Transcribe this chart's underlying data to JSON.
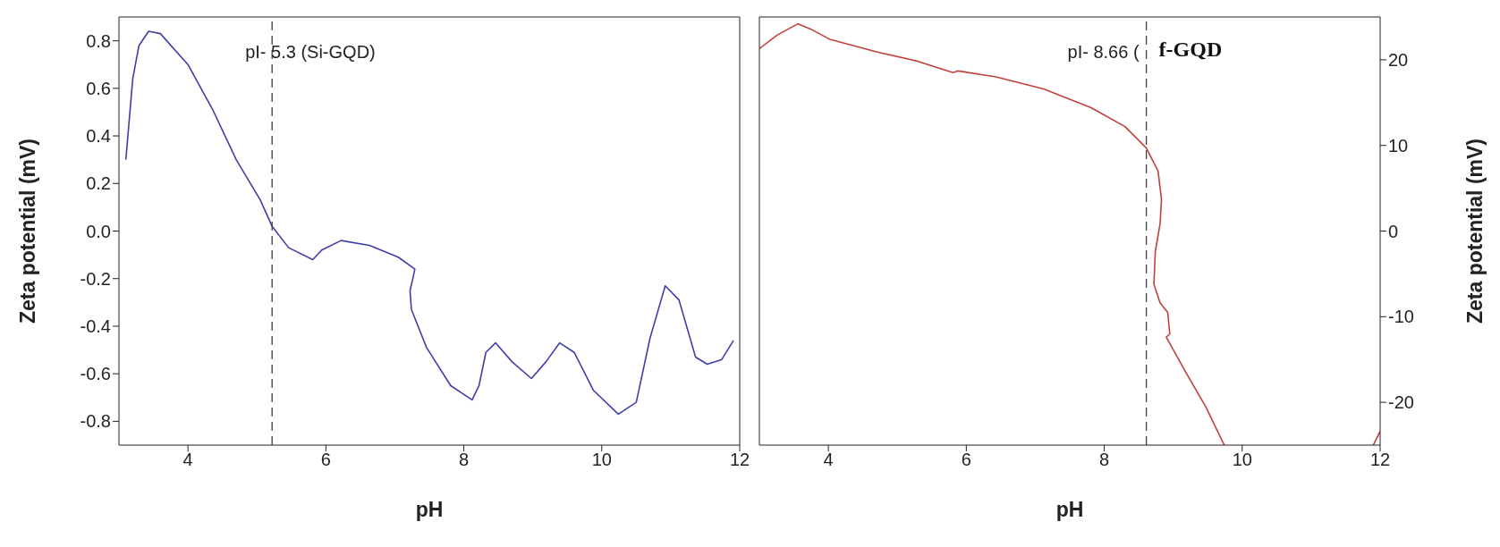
{
  "chart_data": [
    {
      "type": "line",
      "xlabel": "pH",
      "ylabel": "Zeta potential (mV)",
      "xlim": [
        3,
        12
      ],
      "xticks": [
        4,
        6,
        8,
        10,
        12
      ],
      "ylim": [
        -0.9,
        0.9
      ],
      "yticks": [
        -0.8,
        -0.6,
        -0.4,
        -0.2,
        {
          "value": 0,
          "label": "0.0"
        },
        0.2,
        0.4,
        0.6,
        0.8
      ],
      "ref_lines": [
        {
          "axis": "x",
          "value": 5.22,
          "label": "pI- 5.3 (Si-GQD)",
          "color": "#404040",
          "line_style": "dashed"
        }
      ],
      "series": [
        {
          "color": "#3f3fa8",
          "x": [
            3.1,
            3.2,
            3.29,
            3.43,
            3.6,
            4.0,
            4.36,
            4.7,
            5.05,
            5.22,
            5.46,
            5.81,
            5.94,
            6.22,
            6.63,
            7.05,
            7.29,
            7.26,
            7.22,
            7.24,
            7.46,
            7.81,
            8.12,
            8.22,
            8.32,
            8.46,
            8.7,
            8.98,
            9.19,
            9.39,
            9.6,
            9.88,
            10.24,
            10.5,
            10.7,
            10.92,
            11.12,
            11.36,
            11.53,
            11.74,
            11.91
          ],
          "values": [
            0.3,
            0.64,
            0.78,
            0.84,
            0.83,
            0.7,
            0.51,
            0.3,
            0.13,
            0.02,
            -0.07,
            -0.12,
            -0.08,
            -0.04,
            -0.06,
            -0.11,
            -0.16,
            -0.2,
            -0.25,
            -0.33,
            -0.49,
            -0.65,
            -0.71,
            -0.65,
            -0.51,
            -0.47,
            -0.55,
            -0.62,
            -0.55,
            -0.47,
            -0.51,
            -0.67,
            -0.77,
            -0.72,
            -0.45,
            -0.23,
            -0.29,
            -0.53,
            -0.56,
            -0.54,
            -0.46
          ]
        }
      ]
    },
    {
      "type": "line",
      "xlabel": "pH",
      "y2label": "Zeta potential (mV)",
      "xlim": [
        3,
        12
      ],
      "xticks": [
        4,
        6,
        8,
        10,
        12
      ],
      "y2lim": [
        -25,
        25
      ],
      "y2ticks": [
        -20,
        -10,
        0,
        10,
        20
      ],
      "ref_lines": [
        {
          "axis": "x",
          "value": 8.61,
          "label": "pI- 8.66 (",
          "color": "#404040",
          "line_style": "dashed"
        }
      ],
      "annotations": [
        "f-GQD"
      ],
      "series": [
        {
          "color": "#c0413b",
          "axis": "y2",
          "x": [
            3.0,
            3.26,
            3.56,
            3.74,
            4.02,
            4.71,
            5.26,
            5.81,
            5.88,
            6.43,
            7.12,
            7.81,
            8.3,
            8.61,
            8.78,
            8.83,
            8.81,
            8.74,
            8.72,
            8.81,
            8.92,
            8.95,
            8.9,
            9.19,
            9.47,
            9.74,
            10.8,
            11.9,
            12.0
          ],
          "values": [
            21.3,
            22.9,
            24.2,
            23.6,
            22.4,
            20.9,
            19.9,
            18.5,
            18.7,
            18.0,
            16.6,
            14.4,
            12.2,
            9.7,
            7.0,
            3.7,
            0.9,
            -2.4,
            -6.2,
            -8.4,
            -9.5,
            -12.0,
            -12.4,
            -16.6,
            -20.5,
            -25,
            null,
            -25,
            -23.4
          ]
        }
      ]
    }
  ]
}
